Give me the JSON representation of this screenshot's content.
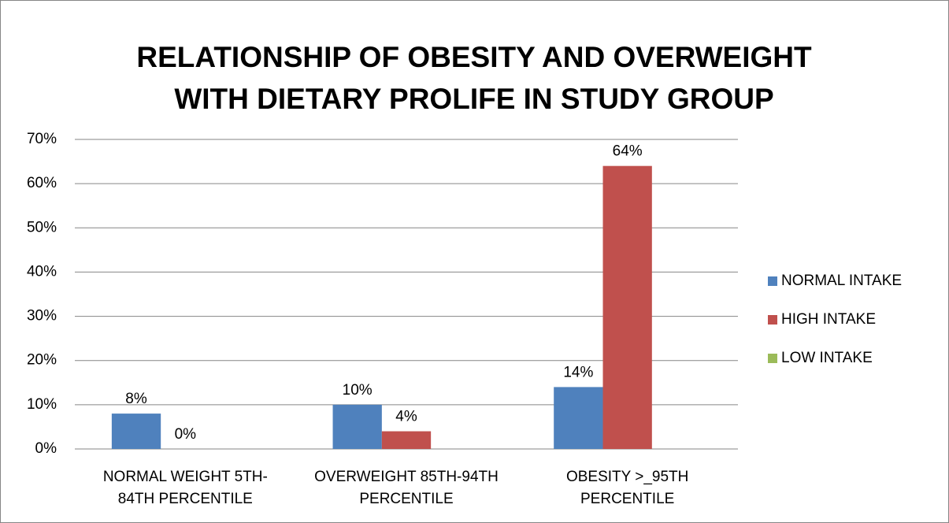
{
  "chart_data": {
    "type": "bar",
    "title": [
      "RELATIONSHIP OF OBESITY AND OVERWEIGHT",
      "WITH DIETARY PROLIFE IN STUDY GROUP"
    ],
    "categories": [
      [
        "NORMAL WEIGHT 5TH-",
        "84TH PERCENTILE"
      ],
      [
        "OVERWEIGHT 85TH-94TH",
        "PERCENTILE"
      ],
      [
        "OBESITY >_95TH",
        "PERCENTILE"
      ]
    ],
    "series": [
      {
        "name": "NORMAL INTAKE",
        "color": "#4f81bd",
        "values": [
          8,
          10,
          14
        ],
        "value_labels": [
          "8%",
          "10%",
          "14%"
        ]
      },
      {
        "name": "HIGH INTAKE",
        "color": "#c0504d",
        "values": [
          0,
          4,
          64
        ],
        "value_labels": [
          "0%",
          "4%",
          "64%"
        ]
      },
      {
        "name": "LOW INTAKE",
        "color": "#9bbb59",
        "values": [
          null,
          null,
          null
        ]
      }
    ],
    "ylim": [
      0,
      70
    ],
    "yticks": [
      {
        "value": 0,
        "label": "0%"
      },
      {
        "value": 10,
        "label": "10%"
      },
      {
        "value": 20,
        "label": "20%"
      },
      {
        "value": 30,
        "label": "30%"
      },
      {
        "value": 40,
        "label": "40%"
      },
      {
        "value": 50,
        "label": "50%"
      },
      {
        "value": 60,
        "label": "60%"
      },
      {
        "value": 70,
        "label": "70%"
      }
    ],
    "grid": true,
    "legend": "right"
  }
}
